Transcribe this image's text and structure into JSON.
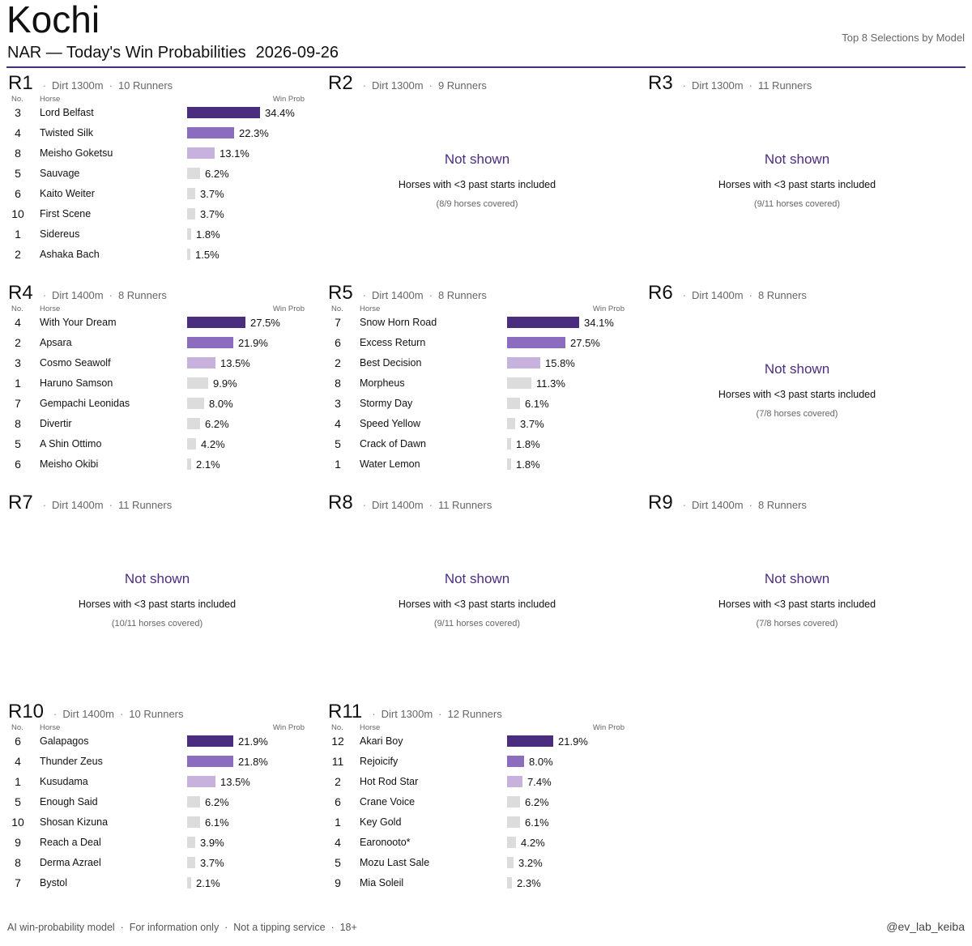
{
  "header": {
    "venue": "Kochi",
    "subtitle": "NAR — Today's Win Probabilities",
    "date": "2026-09-26",
    "top_right": "Top 8 Selections by Model"
  },
  "footer": {
    "left": "AI win-probability model  ·  For information only  ·  Not a tipping service  ·  18+",
    "right": "@ev_lab_keiba"
  },
  "colors": {
    "rank1": "#4b2d7f",
    "rank2": "#8c6cbf",
    "rank3": "#c7b1dd",
    "other": "#dcdcdc",
    "accent": "#4b2d7f"
  },
  "col_headers": {
    "no": "No.",
    "horse": "Horse",
    "prob": "Win Prob"
  },
  "separator": "·",
  "chart_data": [
    {
      "type": "bar",
      "race": "R1",
      "surface_distance": "Dirt 1300m",
      "runners": "10 Runners",
      "shown": true,
      "numbers": [
        "3",
        "4",
        "8",
        "5",
        "6",
        "10",
        "1",
        "2"
      ],
      "categories": [
        "Lord Belfast",
        "Twisted Silk",
        "Meisho Goketsu",
        "Sauvage",
        "Kaito Weiter",
        "First Scene",
        "Sidereus",
        "Ashaka Bach"
      ],
      "values": [
        34.4,
        22.3,
        13.1,
        6.2,
        3.7,
        3.7,
        1.8,
        1.5
      ],
      "labels": [
        "34.4%",
        "22.3%",
        "13.1%",
        "6.2%",
        "3.7%",
        "3.7%",
        "1.8%",
        "1.5%"
      ]
    },
    {
      "type": "bar",
      "race": "R2",
      "surface_distance": "Dirt 1300m",
      "runners": "9 Runners",
      "shown": false,
      "not_shown": "Not shown",
      "note": "Horses with <3 past starts included",
      "coverage": "(8/9 horses covered)"
    },
    {
      "type": "bar",
      "race": "R3",
      "surface_distance": "Dirt 1300m",
      "runners": "11 Runners",
      "shown": false,
      "not_shown": "Not shown",
      "note": "Horses with <3 past starts included",
      "coverage": "(9/11 horses covered)"
    },
    {
      "type": "bar",
      "race": "R4",
      "surface_distance": "Dirt 1400m",
      "runners": "8 Runners",
      "shown": true,
      "numbers": [
        "4",
        "2",
        "3",
        "1",
        "7",
        "8",
        "5",
        "6"
      ],
      "categories": [
        "With Your Dream",
        "Apsara",
        "Cosmo Seawolf",
        "Haruno Samson",
        "Gempachi Leonidas",
        "Divertir",
        "A Shin Ottimo",
        "Meisho Okibi"
      ],
      "values": [
        27.5,
        21.9,
        13.5,
        9.9,
        8.0,
        6.2,
        4.2,
        2.1
      ],
      "labels": [
        "27.5%",
        "21.9%",
        "13.5%",
        "9.9%",
        "8.0%",
        "6.2%",
        "4.2%",
        "2.1%"
      ]
    },
    {
      "type": "bar",
      "race": "R5",
      "surface_distance": "Dirt 1400m",
      "runners": "8 Runners",
      "shown": true,
      "numbers": [
        "7",
        "6",
        "2",
        "8",
        "3",
        "4",
        "5",
        "1"
      ],
      "categories": [
        "Snow Horn Road",
        "Excess Return",
        "Best Decision",
        "Morpheus",
        "Stormy Day",
        "Speed Yellow",
        "Crack of Dawn",
        "Water Lemon"
      ],
      "values": [
        34.1,
        27.5,
        15.8,
        11.3,
        6.1,
        3.7,
        1.8,
        1.8
      ],
      "labels": [
        "34.1%",
        "27.5%",
        "15.8%",
        "11.3%",
        "6.1%",
        "3.7%",
        "1.8%",
        "1.8%"
      ]
    },
    {
      "type": "bar",
      "race": "R6",
      "surface_distance": "Dirt 1400m",
      "runners": "8 Runners",
      "shown": false,
      "not_shown": "Not shown",
      "note": "Horses with <3 past starts included",
      "coverage": "(7/8 horses covered)"
    },
    {
      "type": "bar",
      "race": "R7",
      "surface_distance": "Dirt 1400m",
      "runners": "11 Runners",
      "shown": false,
      "not_shown": "Not shown",
      "note": "Horses with <3 past starts included",
      "coverage": "(10/11 horses covered)"
    },
    {
      "type": "bar",
      "race": "R8",
      "surface_distance": "Dirt 1400m",
      "runners": "11 Runners",
      "shown": false,
      "not_shown": "Not shown",
      "note": "Horses with <3 past starts included",
      "coverage": "(9/11 horses covered)"
    },
    {
      "type": "bar",
      "race": "R9",
      "surface_distance": "Dirt 1400m",
      "runners": "8 Runners",
      "shown": false,
      "not_shown": "Not shown",
      "note": "Horses with <3 past starts included",
      "coverage": "(7/8 horses covered)"
    },
    {
      "type": "bar",
      "race": "R10",
      "surface_distance": "Dirt 1400m",
      "runners": "10 Runners",
      "shown": true,
      "numbers": [
        "6",
        "4",
        "1",
        "5",
        "10",
        "9",
        "8",
        "7"
      ],
      "categories": [
        "Galapagos",
        "Thunder Zeus",
        "Kusudama",
        "Enough Said",
        "Shosan Kizuna",
        "Reach a Deal",
        "Derma Azrael",
        "Bystol"
      ],
      "values": [
        21.9,
        21.8,
        13.5,
        6.2,
        6.1,
        3.9,
        3.7,
        2.1
      ],
      "labels": [
        "21.9%",
        "21.8%",
        "13.5%",
        "6.2%",
        "6.1%",
        "3.9%",
        "3.7%",
        "2.1%"
      ]
    },
    {
      "type": "bar",
      "race": "R11",
      "surface_distance": "Dirt 1300m",
      "runners": "12 Runners",
      "shown": true,
      "numbers": [
        "12",
        "11",
        "2",
        "6",
        "1",
        "4",
        "5",
        "9"
      ],
      "categories": [
        "Akari Boy",
        "Rejoicify",
        "Hot Rod Star",
        "Crane Voice",
        "Key Gold",
        "Earonooto*",
        "Mozu Last Sale",
        "Mia Soleil"
      ],
      "values": [
        21.9,
        8.0,
        7.4,
        6.2,
        6.1,
        4.2,
        3.2,
        2.3
      ],
      "labels": [
        "21.9%",
        "8.0%",
        "7.4%",
        "6.2%",
        "6.1%",
        "4.2%",
        "3.2%",
        "2.3%"
      ]
    }
  ]
}
